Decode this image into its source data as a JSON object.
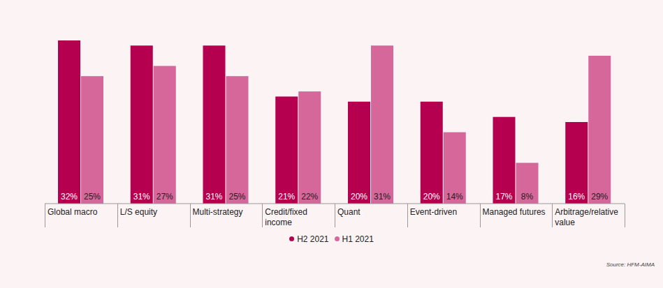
{
  "chart_data": {
    "type": "bar",
    "categories": [
      "Global macro",
      "L/S equity",
      "Multi-strategy",
      "Credit/fixed income",
      "Quant",
      "Event-driven",
      "Managed futures",
      "Arbitrage/relative value"
    ],
    "series": [
      {
        "name": "H2 2021",
        "color": "#b4004e",
        "values": [
          32,
          31,
          31,
          21,
          20,
          20,
          17,
          16
        ],
        "value_labels": [
          "32%",
          "31%",
          "31%",
          "21%",
          "20%",
          "20%",
          "17%",
          "16%"
        ]
      },
      {
        "name": "H1 2021",
        "color": "#d5679a",
        "values": [
          25,
          27,
          25,
          22,
          31,
          14,
          8,
          29
        ],
        "value_labels": [
          "25%",
          "27%",
          "25%",
          "22%",
          "31%",
          "14%",
          "8%",
          "29%"
        ]
      }
    ],
    "ylim": [
      0,
      32
    ],
    "data_labels": true,
    "tick_labels": "x",
    "grid": false,
    "legend": "bottom",
    "source": "Source: HFM-AIMA"
  }
}
